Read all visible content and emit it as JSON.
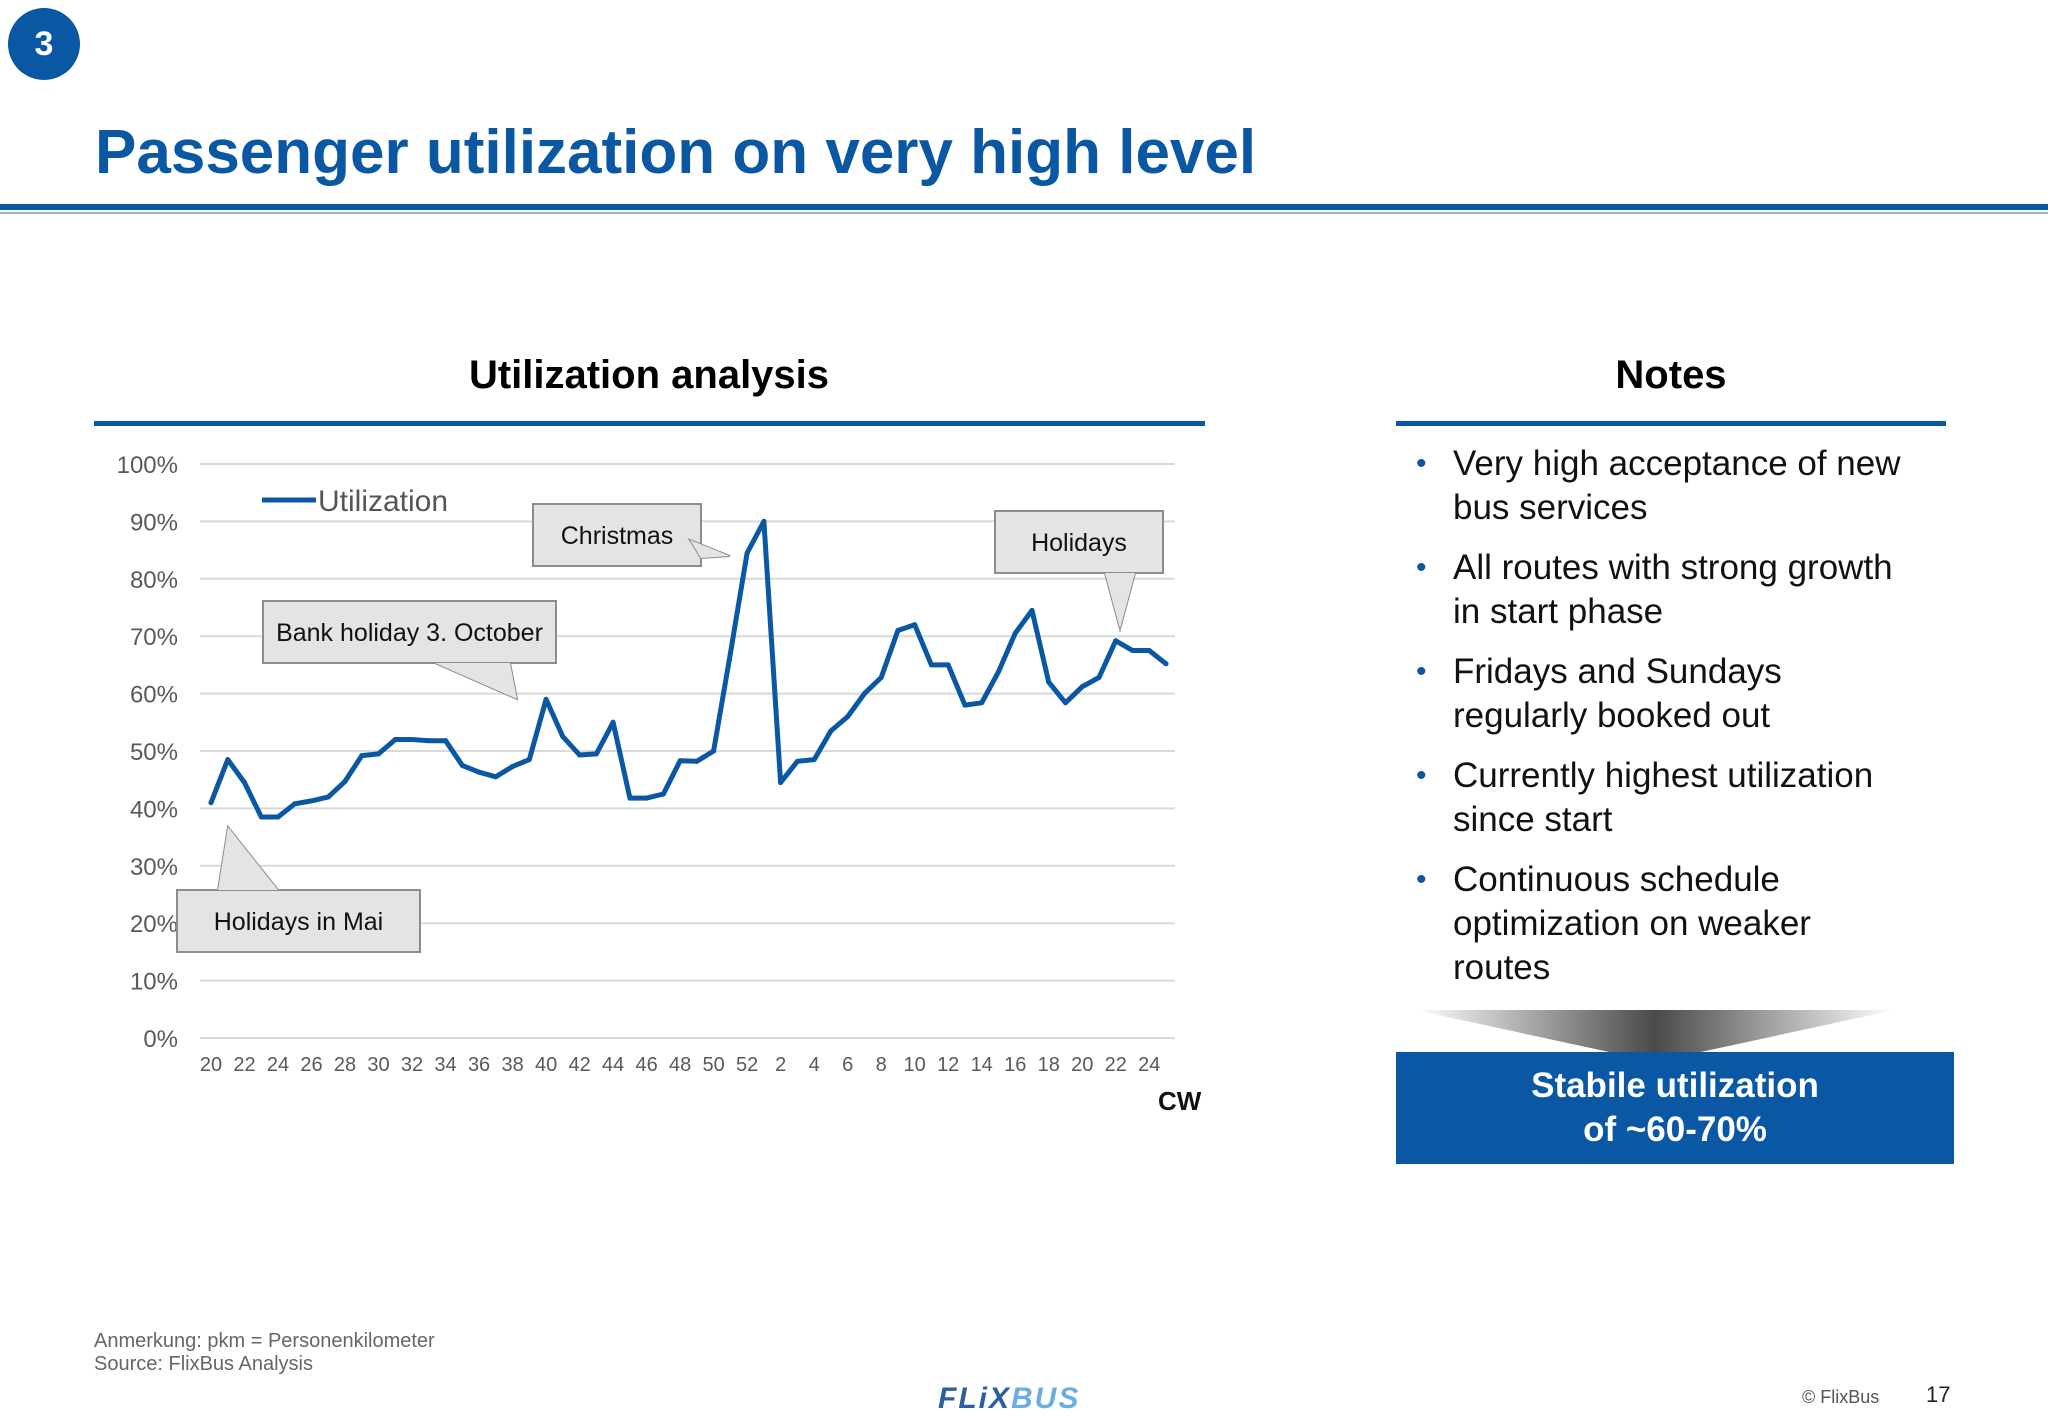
{
  "slide": {
    "section_number": "3",
    "title": "Passenger utilization on very high level",
    "page_number": "17",
    "copyright": "© FlixBus"
  },
  "left_panel": {
    "heading": "Utilization analysis"
  },
  "right_panel": {
    "heading": "Notes",
    "notes": [
      {
        "lines": [
          "Very high acceptance of new",
          "bus services"
        ]
      },
      {
        "lines": [
          "All routes with strong growth",
          "in start phase"
        ]
      },
      {
        "lines": [
          "Fridays and Sundays",
          "regularly booked out"
        ]
      },
      {
        "lines": [
          "Currently highest utilization",
          "since start"
        ]
      },
      {
        "lines": [
          "Continuous schedule",
          "optimization on weaker",
          "routes"
        ]
      }
    ],
    "summary": {
      "line1": "Stabile utilization",
      "line2": "of ~60-70%"
    }
  },
  "chart_data": {
    "type": "line",
    "title": "Utilization analysis",
    "xlabel": "CW",
    "ylabel": "",
    "ylim": [
      0,
      1
    ],
    "yticks": [
      "0%",
      "10%",
      "20%",
      "30%",
      "40%",
      "50%",
      "60%",
      "70%",
      "80%",
      "90%",
      "100%"
    ],
    "xtick_labels": [
      "20",
      "22",
      "24",
      "26",
      "28",
      "30",
      "32",
      "34",
      "36",
      "38",
      "40",
      "42",
      "44",
      "46",
      "48",
      "50",
      "52",
      "2",
      "4",
      "6",
      "8",
      "10",
      "12",
      "14",
      "16",
      "18",
      "20",
      "22",
      "24"
    ],
    "grid": true,
    "legend": "top-left",
    "series": [
      {
        "name": "Utilization",
        "color": "#0a57a3",
        "values": [
          0.41,
          0.485,
          0.445,
          0.385,
          0.385,
          0.408,
          0.413,
          0.42,
          0.447,
          0.492,
          0.495,
          0.52,
          0.52,
          0.518,
          0.518,
          0.475,
          0.463,
          0.455,
          0.473,
          0.485,
          0.59,
          0.525,
          0.493,
          0.495,
          0.55,
          0.418,
          0.418,
          0.425,
          0.483,
          0.482,
          0.5,
          0.67,
          0.845,
          0.9,
          0.445,
          0.482,
          0.485,
          0.535,
          0.56,
          0.6,
          0.628,
          0.71,
          0.72,
          0.65,
          0.65,
          0.58,
          0.584,
          0.638,
          0.705,
          0.745,
          0.62,
          0.584,
          0.612,
          0.628,
          0.692,
          0.675,
          0.675,
          0.652
        ]
      }
    ],
    "annotations": [
      {
        "text": "Christmas",
        "index": 33
      },
      {
        "text": "Bank holiday 3. October",
        "index": 20
      },
      {
        "text": "Holidays",
        "index": 54
      },
      {
        "text": "Holidays in Mai",
        "index": 1
      }
    ]
  },
  "footer": {
    "note": "Anmerkung: pkm = Personenkilometer",
    "source": "Source: FlixBus Analysis",
    "logo_text": "FLiXBUS"
  }
}
